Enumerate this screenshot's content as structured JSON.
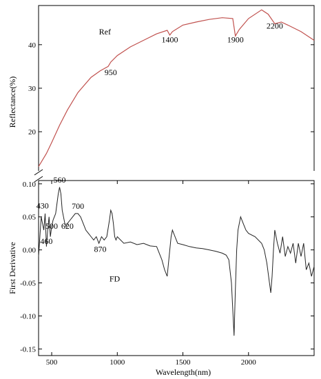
{
  "chart_data": [
    {
      "type": "line",
      "panel": "top",
      "ylabel": "Reflectance(%)",
      "ylim": [
        11,
        49
      ],
      "xlim": [
        400,
        2500
      ],
      "yticks": [
        20,
        30,
        40
      ],
      "grid": false,
      "series": [
        {
          "name": "Ref",
          "color": "#c0504d",
          "x": [
            400,
            430,
            460,
            500,
            560,
            620,
            700,
            800,
            870,
            930,
            950,
            1000,
            1100,
            1200,
            1300,
            1380,
            1400,
            1420,
            1500,
            1600,
            1700,
            1800,
            1880,
            1900,
            1930,
            2000,
            2100,
            2150,
            2200,
            2250,
            2300,
            2400,
            2500
          ],
          "y": [
            12.0,
            13.5,
            15.0,
            17.5,
            21.5,
            25.0,
            29.0,
            32.5,
            34.0,
            35.0,
            36.0,
            37.5,
            39.5,
            41.0,
            42.5,
            43.3,
            42.2,
            43.0,
            44.5,
            45.2,
            45.8,
            46.2,
            46.0,
            42.0,
            43.5,
            46.0,
            48.0,
            47.0,
            44.8,
            45.2,
            44.5,
            43.0,
            41.0
          ]
        }
      ],
      "annotations": [
        {
          "text": "950",
          "x": 950,
          "y": 33.0
        },
        {
          "text": "1400",
          "x": 1400,
          "y": 40.5
        },
        {
          "text": "1900",
          "x": 1900,
          "y": 40.5
        },
        {
          "text": "2200",
          "x": 2200,
          "y": 43.7
        }
      ]
    },
    {
      "type": "line",
      "panel": "bottom",
      "xlabel": "Wavelength(nm)",
      "ylabel": "First Derivative",
      "xlim": [
        400,
        2500
      ],
      "ylim": [
        -0.16,
        0.105
      ],
      "xticks": [
        500,
        1000,
        1500,
        2000
      ],
      "yticks": [
        -0.15,
        -0.1,
        -0.05,
        0.0,
        0.05,
        0.1
      ],
      "ytick_labels": [
        "-0.15",
        "-0.10",
        "-0.05",
        "0.00",
        "0.05",
        "0.10"
      ],
      "grid": false,
      "series": [
        {
          "name": "FD",
          "color": "#222222",
          "x": [
            400,
            410,
            420,
            430,
            440,
            450,
            460,
            470,
            480,
            490,
            500,
            510,
            520,
            530,
            540,
            550,
            560,
            570,
            580,
            590,
            600,
            610,
            620,
            640,
            660,
            680,
            700,
            720,
            740,
            760,
            780,
            800,
            820,
            840,
            860,
            870,
            880,
            900,
            920,
            940,
            950,
            960,
            970,
            980,
            990,
            1000,
            1050,
            1100,
            1150,
            1200,
            1250,
            1300,
            1320,
            1340,
            1360,
            1380,
            1390,
            1400,
            1410,
            1420,
            1440,
            1460,
            1500,
            1550,
            1600,
            1650,
            1700,
            1750,
            1800,
            1830,
            1850,
            1870,
            1880,
            1890,
            1900,
            1910,
            1920,
            1940,
            1960,
            1980,
            2000,
            2050,
            2100,
            2120,
            2140,
            2160,
            2170,
            2180,
            2190,
            2200,
            2210,
            2220,
            2240,
            2260,
            2280,
            2300,
            2320,
            2340,
            2360,
            2380,
            2400,
            2420,
            2440,
            2460,
            2480,
            2500
          ],
          "y": [
            -0.01,
            0.02,
            0.05,
            0.04,
            0.03,
            0.055,
            0.005,
            0.03,
            0.05,
            0.02,
            0.035,
            0.045,
            0.05,
            0.055,
            0.07,
            0.085,
            0.095,
            0.085,
            0.06,
            0.05,
            0.04,
            0.035,
            0.04,
            0.045,
            0.05,
            0.055,
            0.055,
            0.05,
            0.04,
            0.03,
            0.025,
            0.02,
            0.015,
            0.02,
            0.01,
            0.015,
            0.02,
            0.015,
            0.02,
            0.045,
            0.06,
            0.055,
            0.04,
            0.02,
            0.015,
            0.02,
            0.01,
            0.012,
            0.008,
            0.01,
            0.006,
            0.005,
            -0.005,
            -0.015,
            -0.03,
            -0.04,
            -0.02,
            0.0,
            0.02,
            0.03,
            0.02,
            0.01,
            0.008,
            0.005,
            0.003,
            0.002,
            0.0,
            -0.002,
            -0.005,
            -0.008,
            -0.015,
            -0.05,
            -0.09,
            -0.13,
            -0.06,
            0.0,
            0.03,
            0.05,
            0.04,
            0.03,
            0.025,
            0.02,
            0.01,
            0.0,
            -0.02,
            -0.05,
            -0.065,
            -0.04,
            0.0,
            0.03,
            0.02,
            0.01,
            -0.005,
            0.02,
            -0.01,
            0.005,
            -0.005,
            0.01,
            -0.02,
            0.01,
            -0.01,
            0.01,
            -0.03,
            -0.02,
            -0.04,
            -0.025
          ]
        }
      ],
      "annotations": [
        {
          "text": "560",
          "x": 560,
          "y": 0.102
        },
        {
          "text": "430",
          "x": 430,
          "y": 0.063
        },
        {
          "text": "700",
          "x": 700,
          "y": 0.062
        },
        {
          "text": "500",
          "x": 500,
          "y": 0.032
        },
        {
          "text": "620",
          "x": 620,
          "y": 0.032
        },
        {
          "text": "460",
          "x": 460,
          "y": 0.009
        },
        {
          "text": "870",
          "x": 870,
          "y": -0.003
        }
      ]
    }
  ]
}
